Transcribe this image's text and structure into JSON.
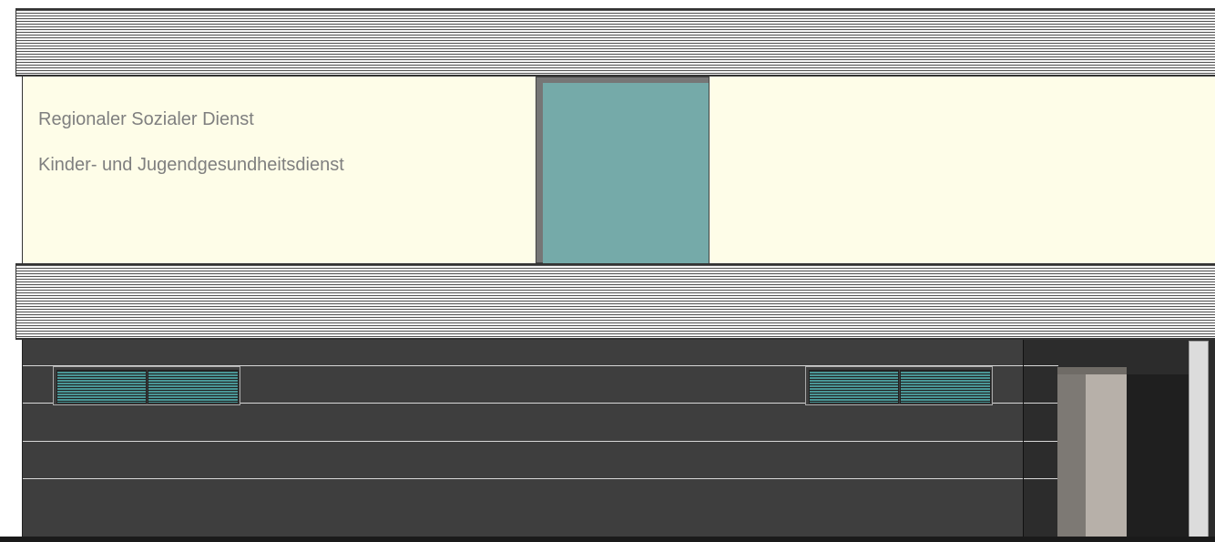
{
  "facade": {
    "sign_line_1": "Regionaler Sozialer Dienst",
    "sign_line_2": "Kinder- und Jugendgesundheitsdienst"
  },
  "colors": {
    "cream_wall": "#fefde8",
    "sign_text": "#7f7f7f",
    "window_glass": "#75aaa9",
    "ground_floor": "#3e3e3e",
    "door_panel": "#b7b0a9"
  }
}
